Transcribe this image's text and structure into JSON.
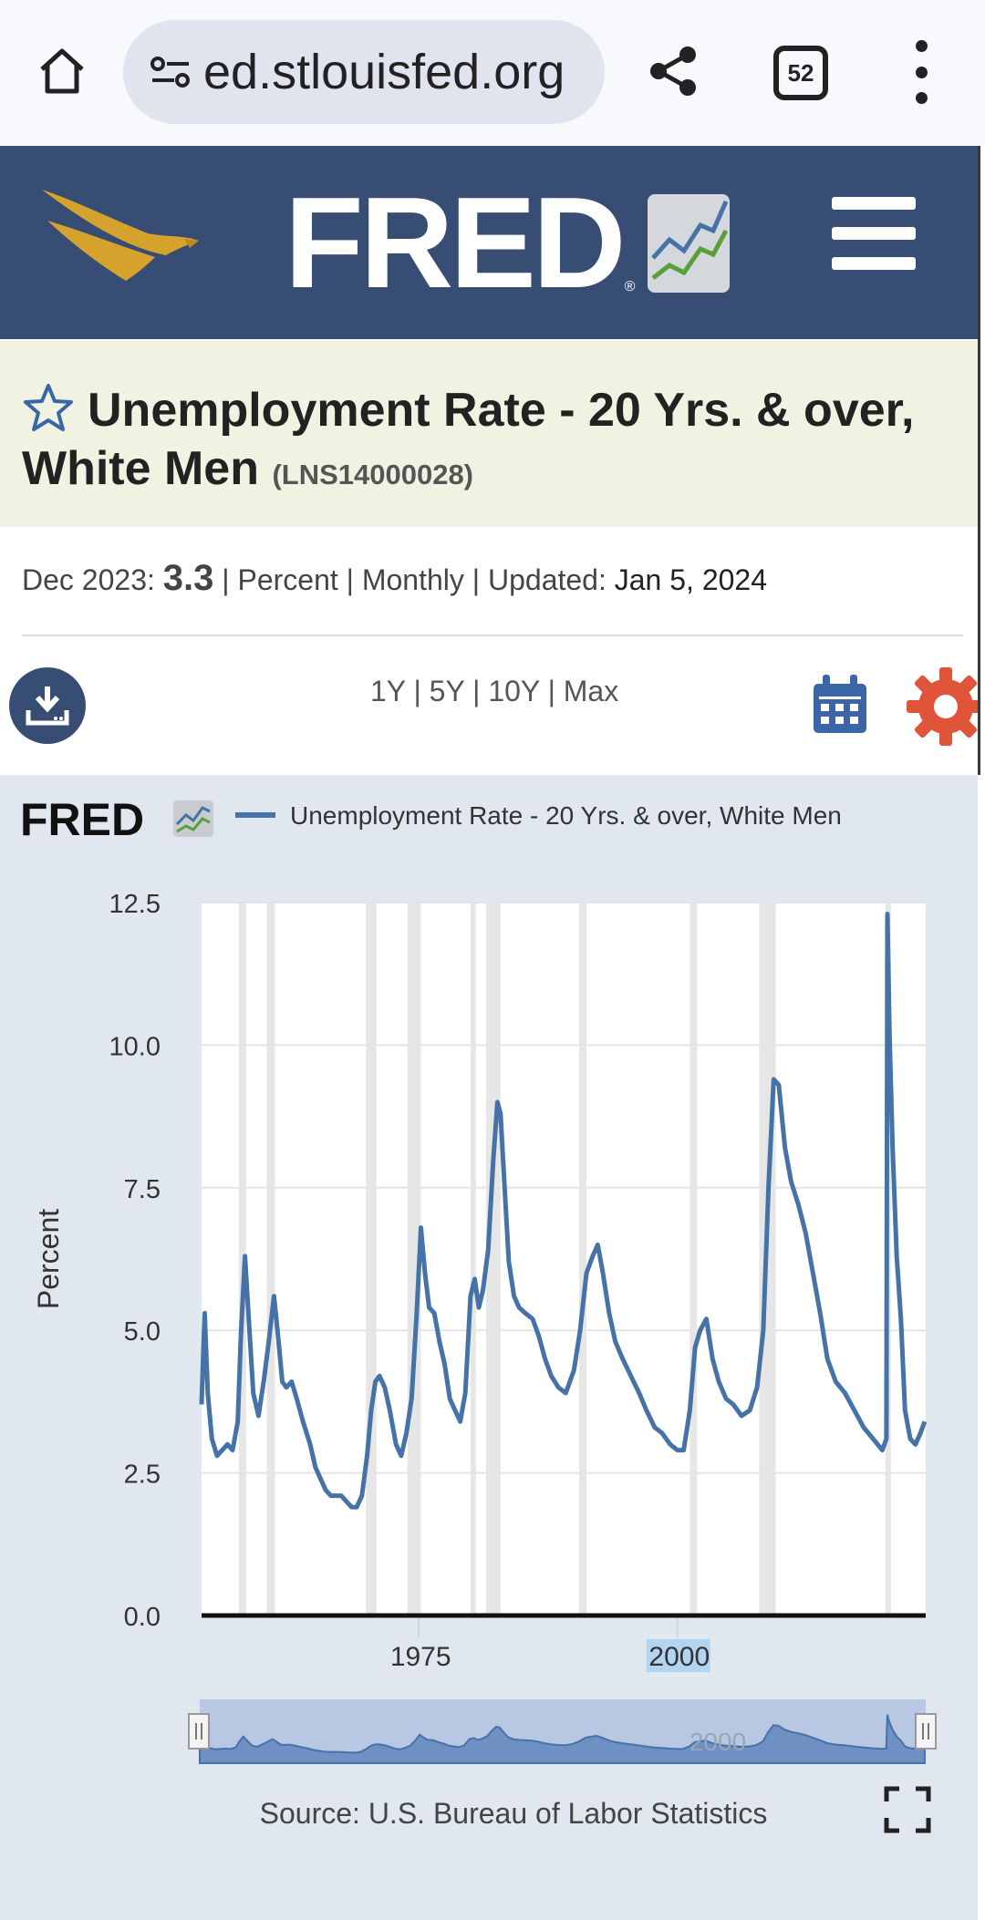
{
  "browser": {
    "url": "ed.stlouisfed.org",
    "tab_count": "52",
    "icons": [
      "home-icon",
      "tune-icon",
      "share-icon",
      "tabs-icon",
      "more-vert-icon"
    ]
  },
  "header": {
    "logo_text": "FRED",
    "icons": [
      "eagle-logo-icon",
      "fred-chart-icon",
      "hamburger-menu-icon"
    ]
  },
  "series": {
    "title": "Unemployment Rate - 20 Yrs. & over, White Men",
    "code": "(LNS14000028)"
  },
  "meta": {
    "date_label": "Dec 2023:",
    "value": "3.3",
    "units": "Percent",
    "frequency": "Monthly",
    "updated_label": "Updated:",
    "updated_date": "Jan 5, 2024",
    "sep": "|"
  },
  "controls": {
    "ranges": [
      "1Y",
      "5Y",
      "10Y",
      "Max"
    ],
    "icons": [
      "download-icon",
      "calendar-icon",
      "gear-icon"
    ]
  },
  "colors": {
    "header_bg": "#374d74",
    "title_bg": "#f1f3e2",
    "chart_panel_bg": "#e0e7ee",
    "series_line": "#4572a7",
    "recession_shade": "#e6e6e6",
    "gear": "#e0553a",
    "eagle": "#d6a22e"
  },
  "chart_data": {
    "type": "line",
    "title": "",
    "legend_logo": "FRED",
    "xlabel": "",
    "ylabel": "Percent",
    "ylim": [
      0,
      12.5
    ],
    "yticks": [
      "0.0",
      "2.5",
      "5.0",
      "7.5",
      "10.0",
      "12.5"
    ],
    "xticks": [
      "1975",
      "2000"
    ],
    "xlim": [
      1954,
      2024
    ],
    "grid": true,
    "legend": "top",
    "source": "Source: U.S. Bureau of Labor Statistics",
    "navigator_label": "2000",
    "recessions": [
      [
        1957.6,
        1958.3
      ],
      [
        1960.3,
        1961.1
      ],
      [
        1969.9,
        1970.9
      ],
      [
        1973.9,
        1975.2
      ],
      [
        1980.0,
        1980.5
      ],
      [
        1981.5,
        1982.9
      ],
      [
        1990.5,
        1991.2
      ],
      [
        2001.2,
        2001.9
      ],
      [
        2007.9,
        2009.5
      ],
      [
        2020.1,
        2020.3
      ]
    ],
    "series": [
      {
        "name": "Unemployment Rate - 20 Yrs. & over, White Men",
        "x": [
          1954.0,
          1954.3,
          1954.6,
          1955.0,
          1955.5,
          1956.0,
          1956.5,
          1957.0,
          1957.5,
          1957.8,
          1958.2,
          1958.5,
          1959.0,
          1959.5,
          1960.0,
          1960.5,
          1961.0,
          1961.4,
          1961.8,
          1962.2,
          1962.7,
          1963.2,
          1963.8,
          1964.5,
          1965.0,
          1965.5,
          1966.0,
          1966.5,
          1967.0,
          1967.5,
          1968.0,
          1968.5,
          1969.0,
          1969.5,
          1970.0,
          1970.4,
          1970.8,
          1971.2,
          1971.7,
          1972.2,
          1972.8,
          1973.3,
          1973.8,
          1974.3,
          1974.8,
          1975.2,
          1975.6,
          1976.0,
          1976.5,
          1977.0,
          1977.5,
          1978.0,
          1978.5,
          1979.0,
          1979.5,
          1980.0,
          1980.4,
          1980.8,
          1981.2,
          1981.7,
          1982.2,
          1982.6,
          1982.9,
          1983.3,
          1983.7,
          1984.2,
          1984.7,
          1985.3,
          1986.0,
          1986.6,
          1987.2,
          1987.8,
          1988.5,
          1989.2,
          1990.0,
          1990.6,
          1991.2,
          1991.8,
          1992.3,
          1992.8,
          1993.4,
          1994.0,
          1994.7,
          1995.5,
          1996.3,
          1997.0,
          1997.8,
          1998.5,
          1999.3,
          2000.0,
          2000.6,
          2001.2,
          2001.7,
          2002.2,
          2002.8,
          2003.4,
          2004.0,
          2004.7,
          2005.4,
          2006.2,
          2007.0,
          2007.7,
          2008.3,
          2008.8,
          2009.3,
          2009.8,
          2010.4,
          2011.0,
          2011.7,
          2012.4,
          2013.1,
          2013.8,
          2014.5,
          2015.3,
          2016.2,
          2017.1,
          2018.0,
          2018.9,
          2019.8,
          2020.2,
          2020.3,
          2020.5,
          2020.8,
          2021.2,
          2021.6,
          2022.0,
          2022.5,
          2023.0,
          2023.5,
          2023.9
        ],
        "values": [
          3.7,
          5.3,
          3.9,
          3.1,
          2.8,
          2.9,
          3.0,
          2.9,
          3.4,
          4.9,
          6.3,
          5.4,
          3.9,
          3.5,
          4.1,
          4.8,
          5.6,
          4.9,
          4.1,
          4.0,
          4.1,
          3.8,
          3.4,
          3.0,
          2.6,
          2.4,
          2.2,
          2.1,
          2.1,
          2.1,
          2.0,
          1.9,
          1.9,
          2.1,
          2.8,
          3.6,
          4.1,
          4.2,
          4.0,
          3.6,
          3.0,
          2.8,
          3.2,
          3.8,
          5.3,
          6.8,
          6.0,
          5.4,
          5.3,
          4.8,
          4.4,
          3.8,
          3.6,
          3.4,
          3.9,
          5.6,
          5.9,
          5.4,
          5.7,
          6.4,
          8.0,
          9.0,
          8.8,
          7.5,
          6.2,
          5.6,
          5.4,
          5.3,
          5.2,
          4.9,
          4.5,
          4.2,
          4.0,
          3.9,
          4.3,
          5.0,
          6.0,
          6.3,
          6.5,
          6.0,
          5.3,
          4.8,
          4.5,
          4.2,
          3.9,
          3.6,
          3.3,
          3.2,
          3.0,
          2.9,
          2.9,
          3.6,
          4.7,
          5.0,
          5.2,
          4.5,
          4.1,
          3.8,
          3.7,
          3.5,
          3.6,
          4.0,
          5.0,
          7.5,
          9.4,
          9.3,
          8.2,
          7.6,
          7.2,
          6.7,
          6.0,
          5.3,
          4.5,
          4.1,
          3.9,
          3.6,
          3.3,
          3.1,
          2.9,
          3.1,
          12.3,
          10.2,
          8.2,
          6.3,
          5.2,
          3.6,
          3.1,
          3.0,
          3.2,
          3.4
        ]
      }
    ]
  }
}
